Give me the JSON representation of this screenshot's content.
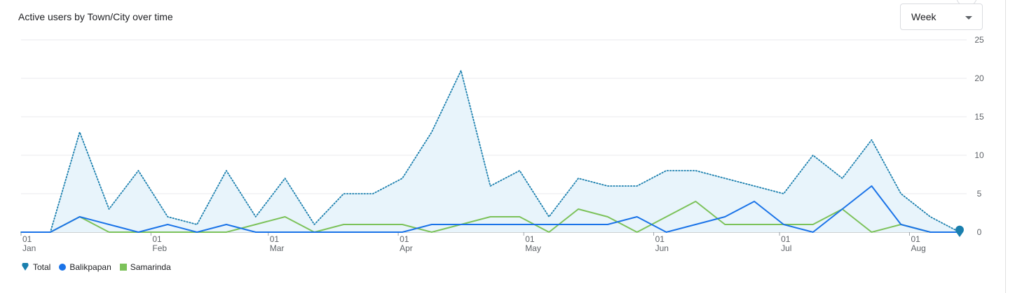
{
  "card": {
    "title": "Active users by Town/City over time",
    "period_select": {
      "value": "Week"
    }
  },
  "colors": {
    "total": "#1a7fae",
    "total_fill": "#e8f4fb",
    "balikpapan": "#1a73e8",
    "samarinda": "#7cc25a",
    "grid": "#e8eaed",
    "axis_text": "#5f6368"
  },
  "chart_data": {
    "type": "line",
    "title": "Active users by Town/City over time",
    "x_tick_labels": [
      {
        "day": "01",
        "month": "Jan",
        "week_index": 0
      },
      {
        "day": "01",
        "month": "Feb",
        "week_index": 4.43
      },
      {
        "day": "01",
        "month": "Mar",
        "week_index": 8.43
      },
      {
        "day": "01",
        "month": "Apr",
        "week_index": 12.86
      },
      {
        "day": "01",
        "month": "May",
        "week_index": 17.14
      },
      {
        "day": "01",
        "month": "Jun",
        "week_index": 21.57
      },
      {
        "day": "01",
        "month": "Jul",
        "week_index": 25.86
      },
      {
        "day": "01",
        "month": "Aug",
        "week_index": 30.29
      }
    ],
    "ylim": [
      0,
      25
    ],
    "y_ticks": [
      0,
      5,
      10,
      15,
      20,
      25
    ],
    "grid": true,
    "legend_position": "bottom-left",
    "series": [
      {
        "name": "Total",
        "style": "dotted-area",
        "values": [
          0,
          0,
          13,
          3,
          8,
          2,
          1,
          8,
          2,
          7,
          1,
          5,
          5,
          7,
          13,
          21,
          6,
          8,
          2,
          7,
          6,
          6,
          8,
          8,
          7,
          6,
          5,
          10,
          7,
          12,
          5,
          2,
          0
        ]
      },
      {
        "name": "Balikpapan",
        "style": "line",
        "values": [
          0,
          0,
          2,
          1,
          0,
          1,
          0,
          1,
          0,
          0,
          0,
          0,
          0,
          0,
          1,
          1,
          1,
          1,
          1,
          1,
          1,
          2,
          0,
          1,
          2,
          4,
          1,
          0,
          3,
          6,
          1,
          0,
          0
        ]
      },
      {
        "name": "Samarinda",
        "style": "line",
        "values": [
          0,
          0,
          2,
          0,
          0,
          0,
          0,
          0,
          1,
          2,
          0,
          1,
          1,
          1,
          0,
          1,
          2,
          2,
          0,
          3,
          2,
          0,
          2,
          4,
          1,
          1,
          1,
          1,
          3,
          0,
          1,
          0,
          0
        ]
      }
    ]
  },
  "legend": [
    {
      "name": "Total",
      "icon": "pin-icon"
    },
    {
      "name": "Balikpapan",
      "icon": "dot-icon"
    },
    {
      "name": "Samarinda",
      "icon": "square-icon"
    }
  ]
}
